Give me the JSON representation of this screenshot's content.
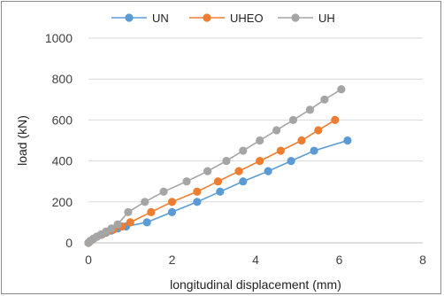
{
  "chart_data": {
    "type": "line",
    "xlabel": "longitudinal displacement (mm)",
    "ylabel": "load  (kN)",
    "xlim": [
      0,
      8
    ],
    "ylim": [
      0,
      1000
    ],
    "xticks": [
      0,
      2,
      4,
      6,
      8
    ],
    "yticks": [
      0,
      200,
      400,
      600,
      800,
      1000
    ],
    "grid": "horizontal",
    "legend_position": "top",
    "series": [
      {
        "name": "UN",
        "color": "#5b9bd5",
        "x": [
          0,
          0.05,
          0.12,
          0.2,
          0.3,
          0.42,
          0.55,
          0.7,
          0.9,
          1.4,
          2.0,
          2.6,
          3.15,
          3.7,
          4.3,
          4.85,
          5.4,
          6.2
        ],
        "y": [
          0,
          10,
          20,
          30,
          40,
          50,
          60,
          70,
          80,
          100,
          150,
          200,
          250,
          300,
          350,
          400,
          450,
          500
        ]
      },
      {
        "name": "UHEO",
        "color": "#ed7d31",
        "x": [
          0,
          0.05,
          0.12,
          0.2,
          0.32,
          0.45,
          0.6,
          0.8,
          1.0,
          1.5,
          2.0,
          2.6,
          3.1,
          3.6,
          4.1,
          4.6,
          5.1,
          5.5,
          5.9
        ],
        "y": [
          0,
          10,
          20,
          30,
          40,
          55,
          65,
          80,
          100,
          150,
          200,
          250,
          300,
          350,
          400,
          450,
          500,
          550,
          600
        ]
      },
      {
        "name": "UH",
        "color": "#a5a5a5",
        "x": [
          0,
          0.05,
          0.12,
          0.2,
          0.3,
          0.42,
          0.55,
          0.7,
          0.95,
          1.35,
          1.8,
          2.35,
          2.85,
          3.3,
          3.7,
          4.1,
          4.5,
          4.9,
          5.3,
          5.65,
          6.05
        ],
        "y": [
          0,
          10,
          20,
          30,
          40,
          55,
          70,
          90,
          150,
          200,
          250,
          300,
          350,
          400,
          450,
          500,
          550,
          600,
          650,
          700,
          750
        ]
      }
    ]
  }
}
